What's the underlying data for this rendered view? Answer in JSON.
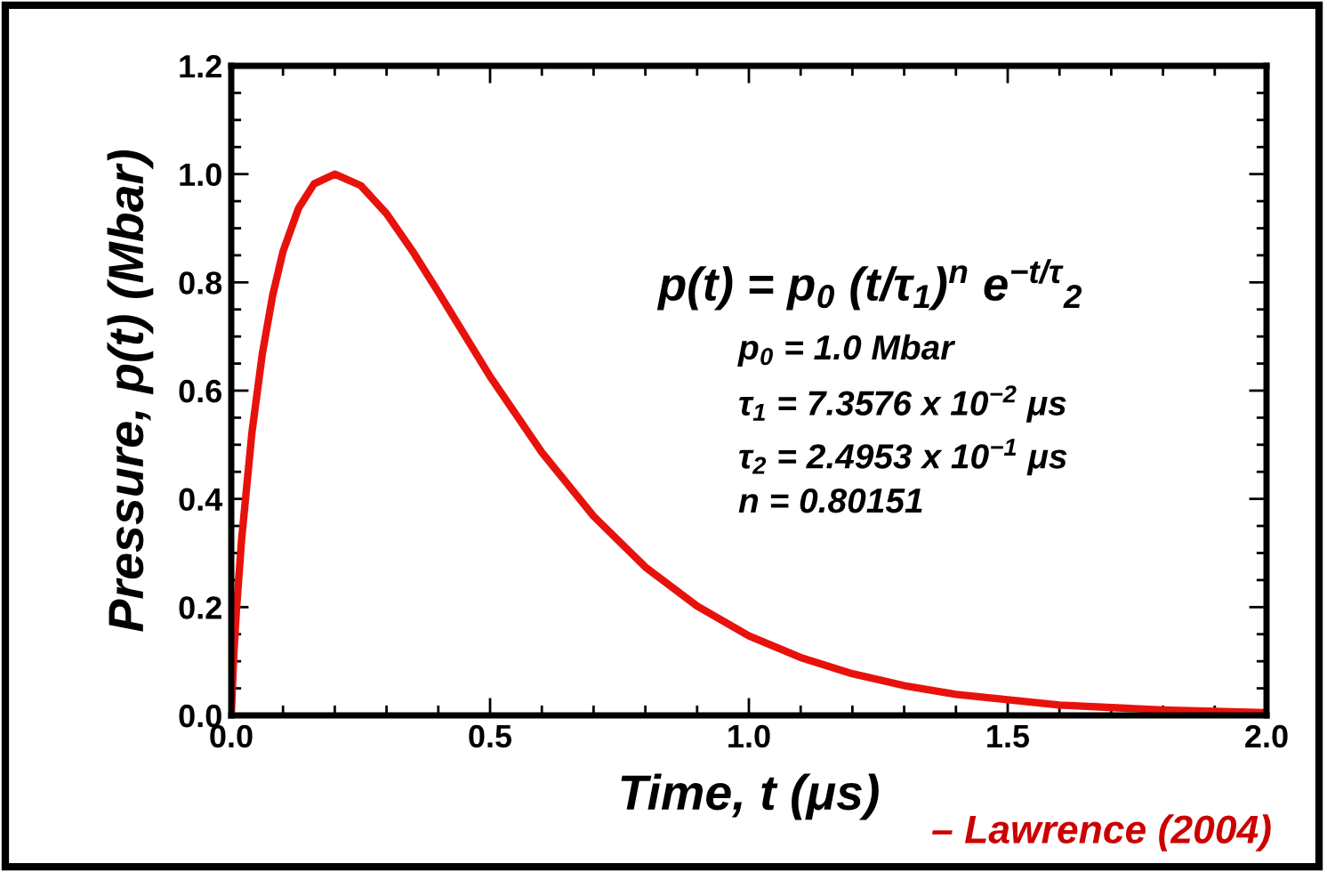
{
  "chart_data": {
    "type": "line",
    "xlabel": "Time, t (μs)",
    "ylabel": "Pressure, p(t) (Mbar)",
    "x": [
      0,
      0.005,
      0.01,
      0.02,
      0.04,
      0.06,
      0.08,
      0.1,
      0.13,
      0.16,
      0.2,
      0.25,
      0.3,
      0.35,
      0.4,
      0.5,
      0.6,
      0.7,
      0.8,
      0.9,
      1.0,
      1.1,
      1.2,
      1.3,
      1.4,
      1.6,
      1.8,
      2.0
    ],
    "series": [
      {
        "color": "#e8120c",
        "values": [
          0,
          0.114,
          0.194,
          0.325,
          0.523,
          0.668,
          0.776,
          0.857,
          0.937,
          0.982,
          1.0,
          0.979,
          0.927,
          0.858,
          0.782,
          0.626,
          0.486,
          0.368,
          0.274,
          0.202,
          0.147,
          0.107,
          0.077,
          0.055,
          0.039,
          0.019,
          0.01,
          0.005
        ]
      }
    ],
    "xlim": [
      0,
      2
    ],
    "ylim": [
      0,
      1.2
    ],
    "xticks": [
      {
        "value": 0,
        "label": "0.0"
      },
      0.5,
      {
        "value": 1,
        "label": "1.0"
      },
      1.5,
      {
        "value": 2,
        "label": "2.0"
      }
    ],
    "yticks": [
      {
        "value": 0,
        "label": "0.0"
      },
      0.2,
      0.4,
      0.6,
      0.8,
      {
        "value": 1,
        "label": "1.0"
      },
      1.2
    ],
    "grid": false,
    "legend": false,
    "marker": "none",
    "line_style": "solid",
    "annotations": [
      "p(t) = p$_{0}$ (t/τ$_{1}$)$^{n}$ e$^{−t/τ}$$_{2}$",
      "p$_{0}$ = 1.0 Mbar",
      "τ$_{1}$ = 7.3576 x 10$^{−2}$ μs",
      "τ$_{2}$ = 2.4953 x 10$^{−1}$ μs",
      "n = 0.80151",
      "– Lawrence (2004)"
    ]
  }
}
